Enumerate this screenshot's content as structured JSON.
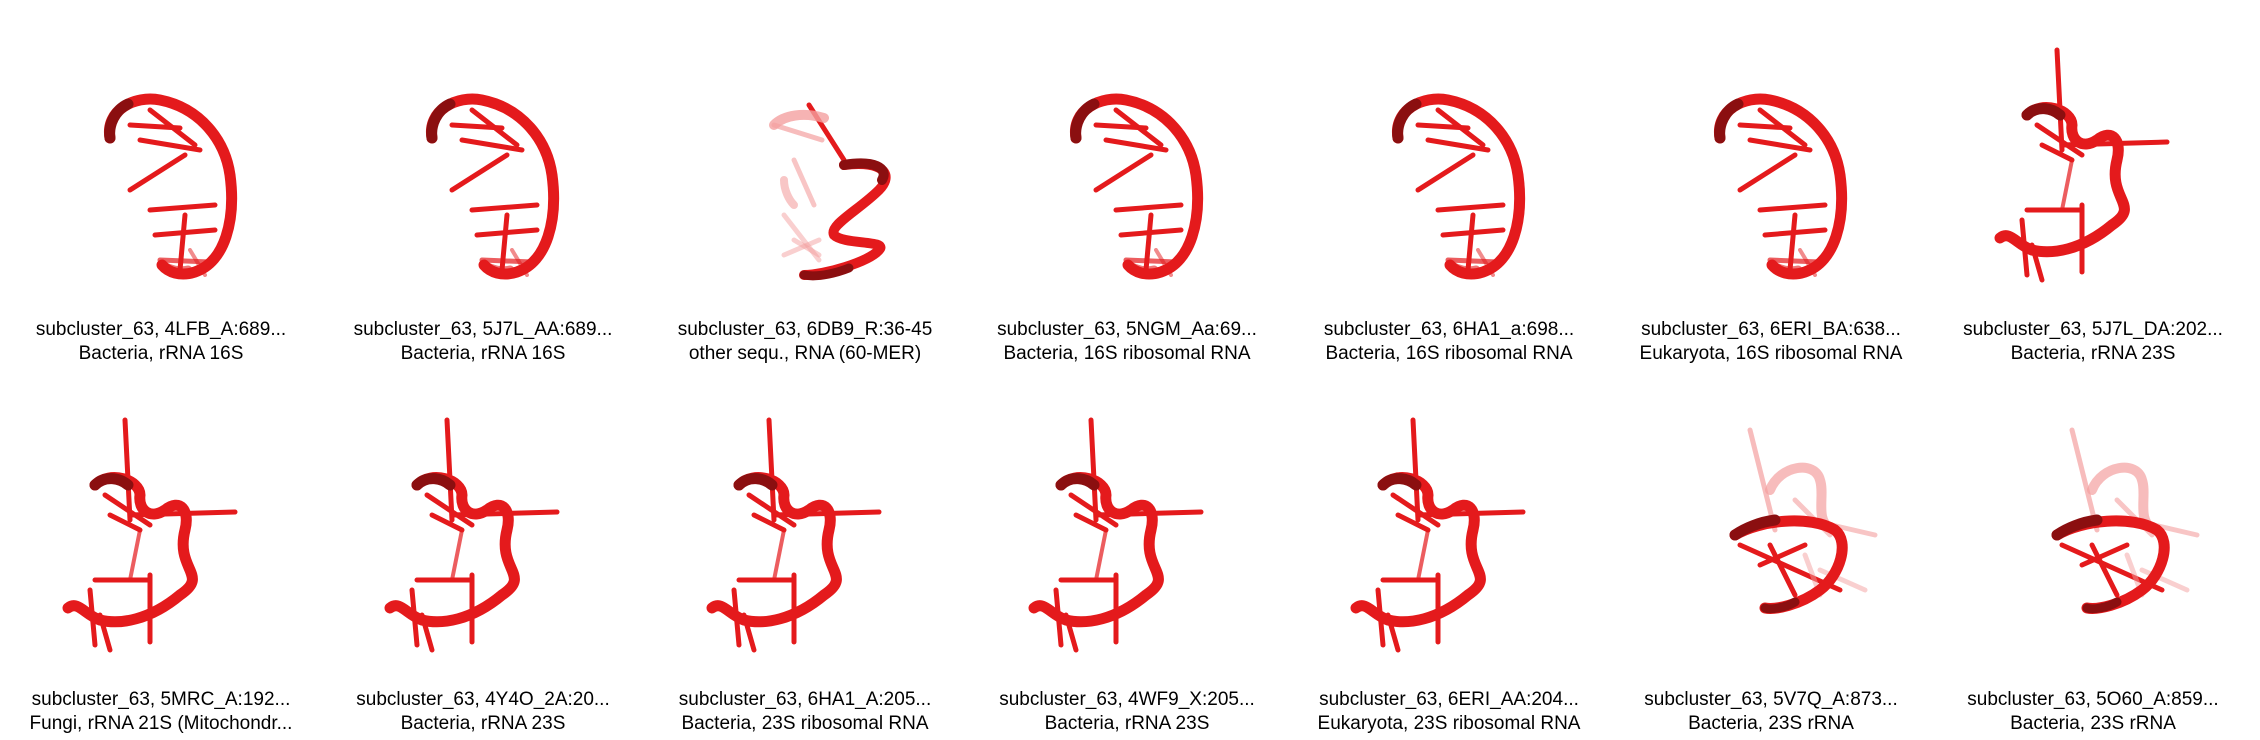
{
  "colors": {
    "ribbon": "#e41a1c",
    "ribbon_dark": "#8b0f10",
    "ribbon_light": "#f4a0a0",
    "text": "#000000",
    "background": "#ffffff"
  },
  "structures": [
    {
      "shape": "hairpin-a",
      "title": "subcluster_63, 4LFB_A:689...",
      "subtitle": "Bacteria, rRNA 16S"
    },
    {
      "shape": "hairpin-a",
      "title": "subcluster_63, 5J7L_AA:689...",
      "subtitle": "Bacteria, rRNA 16S"
    },
    {
      "shape": "hairpin-b",
      "title": "subcluster_63, 6DB9_R:36-45",
      "subtitle": "other sequ., RNA (60-MER)"
    },
    {
      "shape": "hairpin-a",
      "title": "subcluster_63, 5NGM_Aa:69...",
      "subtitle": "Bacteria, 16S ribosomal RNA"
    },
    {
      "shape": "hairpin-a",
      "title": "subcluster_63, 6HA1_a:698...",
      "subtitle": "Bacteria, 16S ribosomal RNA"
    },
    {
      "shape": "hairpin-a",
      "title": "subcluster_63, 6ERI_BA:638...",
      "subtitle": "Eukaryota, 16S ribosomal RNA"
    },
    {
      "shape": "loop-c",
      "title": "subcluster_63, 5J7L_DA:202...",
      "subtitle": "Bacteria, rRNA 23S"
    },
    {
      "shape": "loop-c",
      "title": "subcluster_63, 5MRC_A:192...",
      "subtitle": "Fungi, rRNA 21S (Mitochondr..."
    },
    {
      "shape": "loop-c",
      "title": "subcluster_63, 4Y4O_2A:20...",
      "subtitle": "Bacteria, rRNA 23S"
    },
    {
      "shape": "loop-c",
      "title": "subcluster_63, 6HA1_A:205...",
      "subtitle": "Bacteria, 23S ribosomal RNA"
    },
    {
      "shape": "loop-c",
      "title": "subcluster_63, 4WF9_X:205...",
      "subtitle": "Bacteria, rRNA 23S"
    },
    {
      "shape": "loop-c",
      "title": "subcluster_63, 6ERI_AA:204...",
      "subtitle": "Eukaryota, 23S ribosomal RNA"
    },
    {
      "shape": "twist-d",
      "title": "subcluster_63, 5V7Q_A:873...",
      "subtitle": "Bacteria, 23S rRNA"
    },
    {
      "shape": "twist-d",
      "title": "subcluster_63, 5O60_A:859...",
      "subtitle": "Bacteria, 23S rRNA"
    }
  ]
}
